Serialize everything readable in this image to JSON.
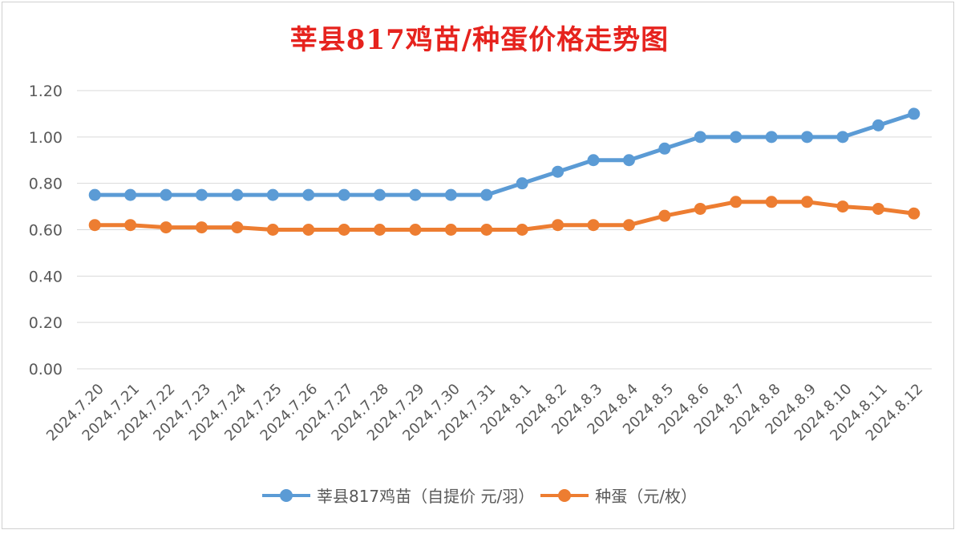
{
  "title": "莘县817鸡苗/种蛋价格走势图",
  "colors": {
    "series1": "#5b9bd5",
    "series2": "#ed7d31",
    "title": "#e6231e",
    "grid": "#d9d9d9",
    "tick": "#595959"
  },
  "chart_data": {
    "type": "line",
    "title": "莘县817鸡苗/种蛋价格走势图",
    "xlabel": "",
    "ylabel": "",
    "ylim": [
      0,
      1.2
    ],
    "yticks": [
      "0.00",
      "0.20",
      "0.40",
      "0.60",
      "0.80",
      "1.00",
      "1.20"
    ],
    "grid": true,
    "legend": "bottom",
    "categories": [
      "2024.7.20",
      "2024.7.21",
      "2024.7.22",
      "2024.7.23",
      "2024.7.24",
      "2024.7.25",
      "2024.7.26",
      "2024.7.27",
      "2024.7.28",
      "2024.7.29",
      "2024.7.30",
      "2024.7.31",
      "2024.8.1",
      "2024.8.2",
      "2024.8.3",
      "2024.8.4",
      "2024.8.5",
      "2024.8.6",
      "2024.8.7",
      "2024.8.8",
      "2024.8.9",
      "2024.8.10",
      "2024.8.11",
      "2024.8.12"
    ],
    "series": [
      {
        "name": "莘县817鸡苗（自提价 元/羽）",
        "color": "#5b9bd5",
        "values": [
          0.75,
          0.75,
          0.75,
          0.75,
          0.75,
          0.75,
          0.75,
          0.75,
          0.75,
          0.75,
          0.75,
          0.75,
          0.8,
          0.85,
          0.9,
          0.9,
          0.95,
          1.0,
          1.0,
          1.0,
          1.0,
          1.0,
          1.05,
          1.1
        ]
      },
      {
        "name": "种蛋（元/枚）",
        "color": "#ed7d31",
        "values": [
          0.62,
          0.62,
          0.61,
          0.61,
          0.61,
          0.6,
          0.6,
          0.6,
          0.6,
          0.6,
          0.6,
          0.6,
          0.6,
          0.62,
          0.62,
          0.62,
          0.66,
          0.69,
          0.72,
          0.72,
          0.72,
          0.7,
          0.69,
          0.67
        ]
      }
    ]
  }
}
